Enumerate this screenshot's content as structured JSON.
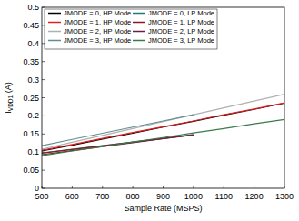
{
  "chart_data": {
    "type": "line",
    "x_label": "Sample Rate (MSPS)",
    "y_label": "IVDD1 (A)",
    "x": [
      500,
      600,
      700,
      800,
      900,
      1000,
      1100,
      1200,
      1300
    ],
    "xlim": [
      500,
      1300
    ],
    "xticks": [
      500,
      600,
      700,
      800,
      900,
      1000,
      1100,
      1200,
      1300
    ],
    "ylim": [
      0,
      0.5
    ],
    "yticks": [
      0,
      0.05,
      0.1,
      0.15,
      0.2,
      0.25,
      0.3,
      0.35,
      0.4,
      0.45,
      0.5
    ],
    "grid": false,
    "legend": "top-left",
    "series": [
      {
        "name": "JMODE = 0, HP Mode",
        "color": "#000000",
        "values": [
          0.103,
          0.119,
          0.136,
          0.152,
          0.169,
          0.185,
          0.202,
          0.218,
          0.235
        ]
      },
      {
        "name": "JMODE = 0, LP Mode",
        "color": "#1f7a7a",
        "values": [
          0.098,
          0.108,
          0.118,
          0.128,
          0.138,
          0.148,
          null,
          null,
          null
        ]
      },
      {
        "name": "JMODE = 1, HP Mode",
        "color": "#e02020",
        "values": [
          0.105,
          0.121,
          0.138,
          0.154,
          0.17,
          0.186,
          0.203,
          0.219,
          0.236
        ]
      },
      {
        "name": "JMODE = 1, LP Mode",
        "color": "#8b1a1a",
        "values": [
          0.097,
          0.107,
          0.117,
          0.127,
          0.137,
          0.147,
          null,
          null,
          null
        ]
      },
      {
        "name": "JMODE = 2, HP Mode",
        "color": "#b0b0b0",
        "values": [
          0.108,
          0.127,
          0.146,
          0.165,
          0.184,
          0.203,
          0.222,
          0.241,
          0.26
        ]
      },
      {
        "name": "JMODE = 2, LP Mode",
        "color": "#6b2040",
        "values": [
          0.093,
          0.104,
          0.115,
          0.126,
          0.137,
          0.148,
          null,
          null,
          null
        ]
      },
      {
        "name": "JMODE = 3, HP Mode",
        "color": "#5f8f8f",
        "values": [
          0.118,
          0.135,
          0.152,
          0.169,
          0.186,
          0.203,
          null,
          null,
          null
        ]
      },
      {
        "name": "JMODE = 3, LP Mode",
        "color": "#3a7a4a",
        "values": [
          0.09,
          0.103,
          0.115,
          0.128,
          0.14,
          0.153,
          0.165,
          0.178,
          0.19
        ]
      }
    ]
  }
}
